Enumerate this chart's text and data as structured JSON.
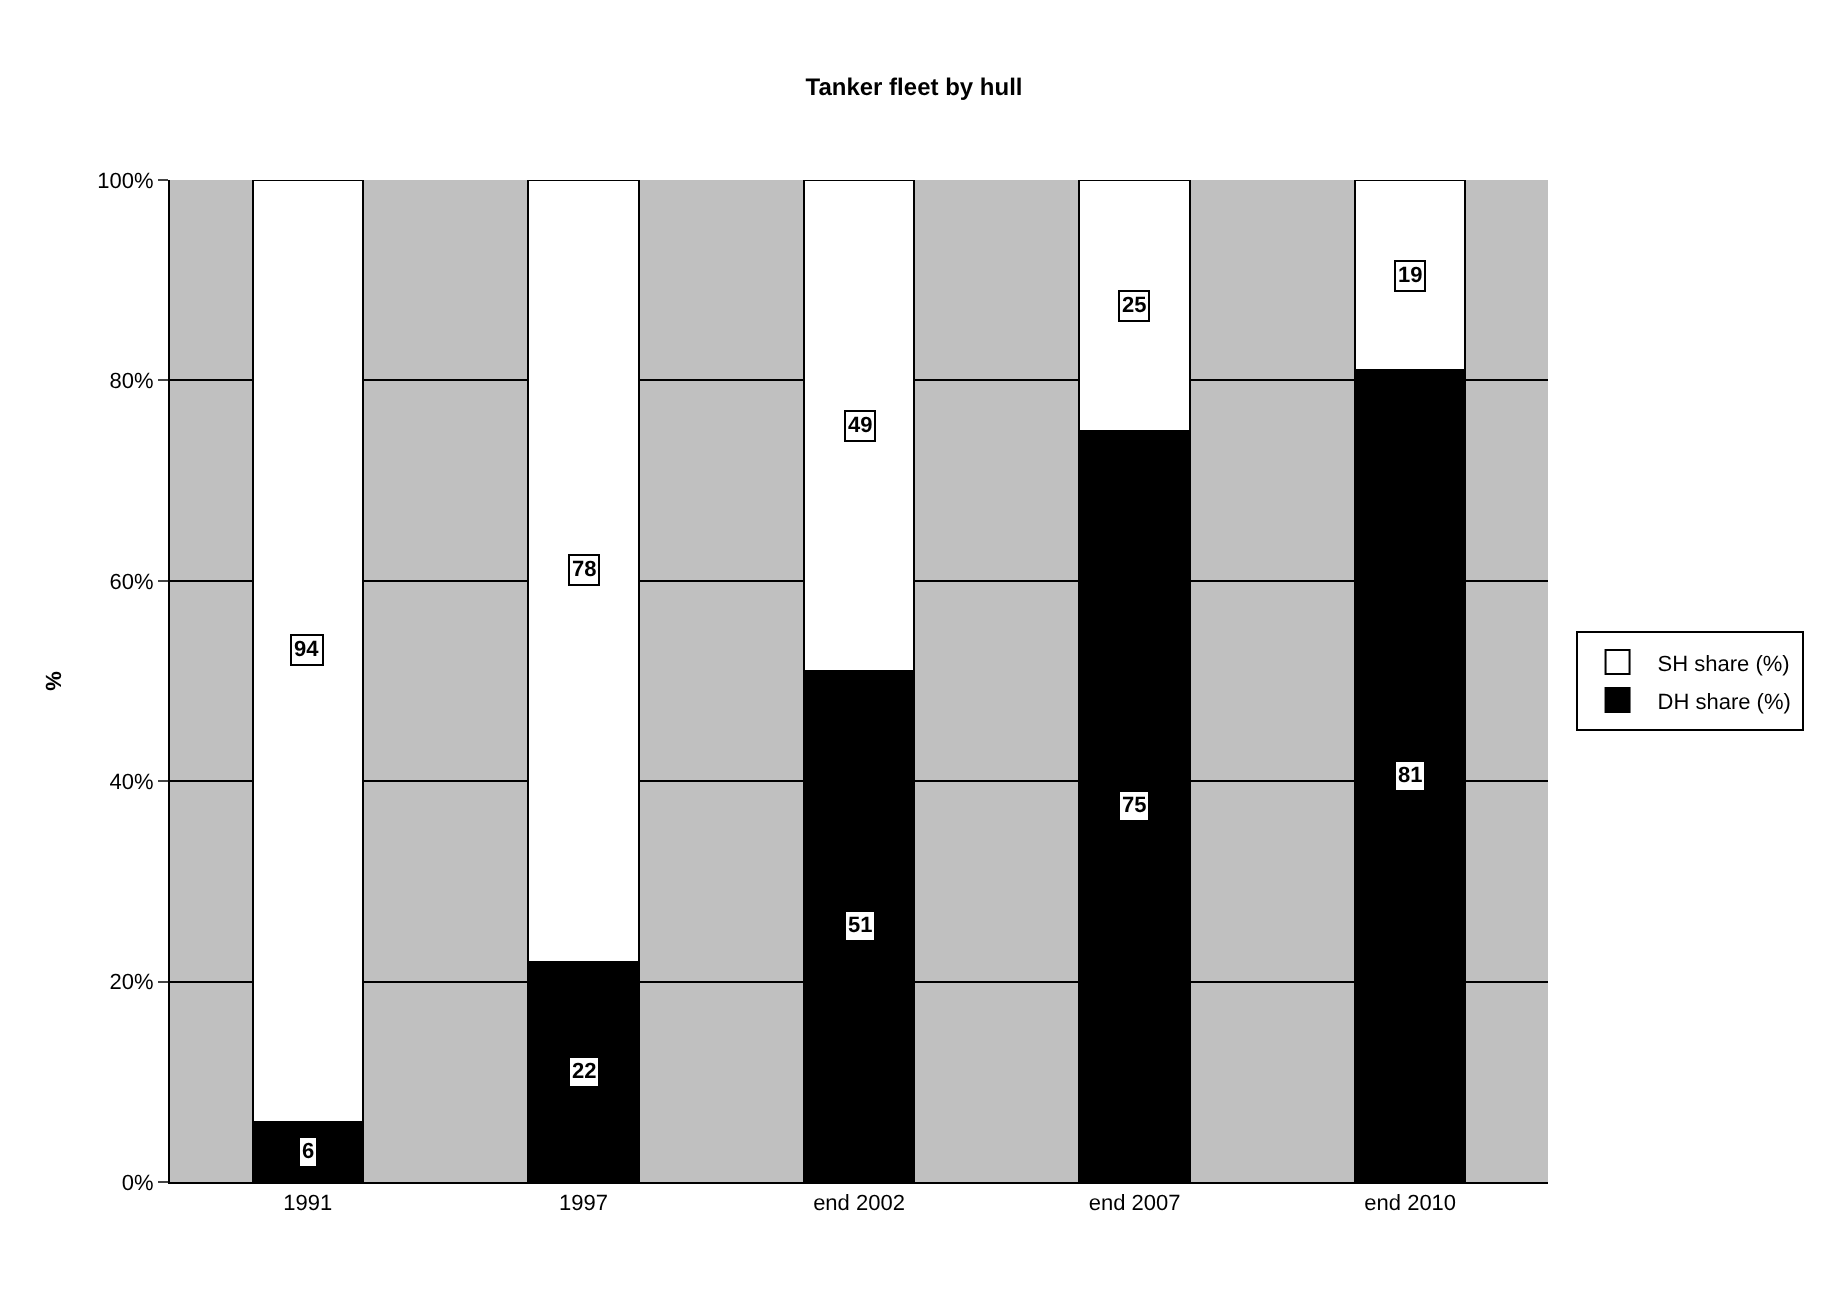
{
  "chart_data": {
    "type": "bar",
    "title": "Tanker fleet by hull",
    "ylabel": "%",
    "categories": [
      "1991",
      "1997",
      "end 2002",
      "end 2007",
      "end 2010"
    ],
    "stacked": true,
    "data_labels": true,
    "grid": "y",
    "legend": "right",
    "ylim": [
      0,
      100
    ],
    "yticks": [
      {
        "value": 0,
        "label": "0%"
      },
      {
        "value": 20,
        "label": "20%"
      },
      {
        "value": 40,
        "label": "40%"
      },
      {
        "value": 60,
        "label": "60%"
      },
      {
        "value": 80,
        "label": "80%"
      },
      {
        "value": 100,
        "label": "100%"
      }
    ],
    "series": [
      {
        "name": "DH share (%)",
        "color": "#000000",
        "values": [
          6,
          22,
          51,
          75,
          81
        ]
      },
      {
        "name": "SH share (%)",
        "color": "#ffffff",
        "values": [
          94,
          78,
          49,
          25,
          19
        ]
      }
    ]
  }
}
